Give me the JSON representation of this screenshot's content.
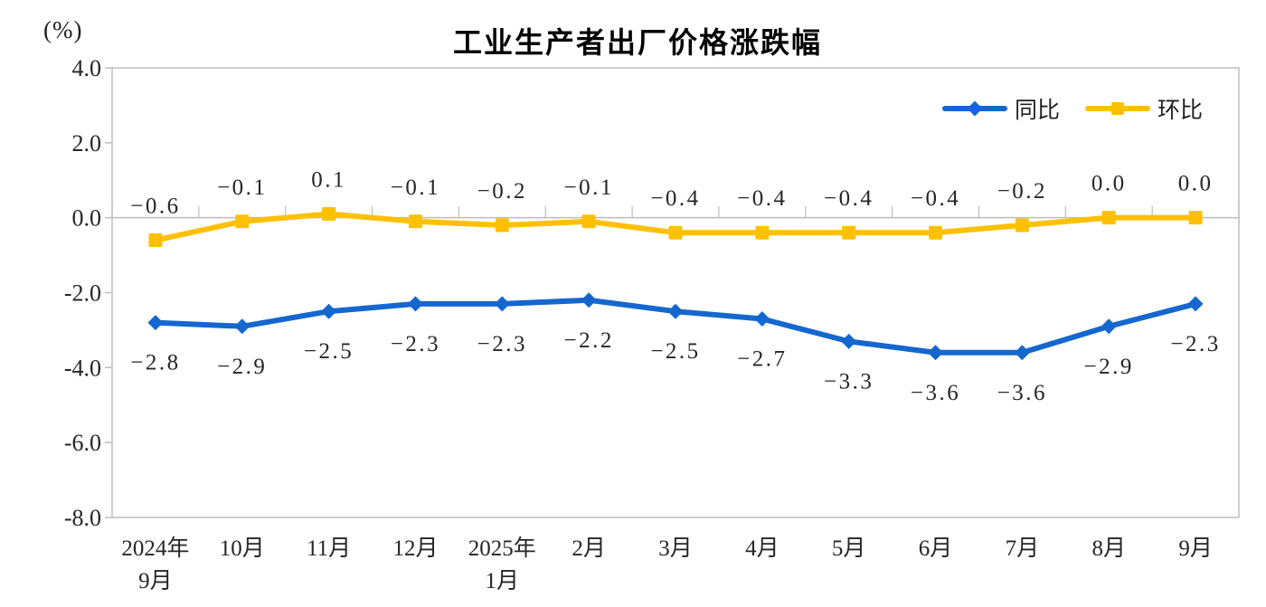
{
  "chart_data": {
    "type": "line",
    "title": "工业生产者出厂价格涨跌幅",
    "unit_label": "(%)",
    "categories": [
      "2024年9月",
      "10月",
      "11月",
      "12月",
      "2025年1月",
      "2月",
      "3月",
      "4月",
      "5月",
      "6月",
      "7月",
      "8月",
      "9月"
    ],
    "x_tick_lines": [
      [
        "2024年",
        "9月"
      ],
      [
        "10月"
      ],
      [
        "11月"
      ],
      [
        "12月"
      ],
      [
        "2025年",
        "1月"
      ],
      [
        "2月"
      ],
      [
        "3月"
      ],
      [
        "4月"
      ],
      [
        "5月"
      ],
      [
        "6月"
      ],
      [
        "7月"
      ],
      [
        "8月"
      ],
      [
        "9月"
      ]
    ],
    "series": [
      {
        "name": "同比",
        "color": "#1467CE",
        "marker": "diamond",
        "label_position": "below",
        "values": [
          -2.8,
          -2.9,
          -2.5,
          -2.3,
          -2.3,
          -2.2,
          -2.5,
          -2.7,
          -3.3,
          -3.6,
          -3.6,
          -2.9,
          -2.3
        ],
        "labels": [
          "-2.8",
          "-2.9",
          "-2.5",
          "-2.3",
          "-2.3",
          "-2.2",
          "-2.5",
          "-2.7",
          "-3.3",
          "-3.6",
          "-3.6",
          "-2.9",
          "-2.3"
        ]
      },
      {
        "name": "环比",
        "color": "#FFC000",
        "marker": "square",
        "label_position": "above",
        "values": [
          -0.6,
          -0.1,
          0.1,
          -0.1,
          -0.2,
          -0.1,
          -0.4,
          -0.4,
          -0.4,
          -0.4,
          -0.2,
          0.0,
          0.0
        ],
        "labels": [
          "-0.6",
          "-0.1",
          "0.1",
          "-0.1",
          "-0.2",
          "-0.1",
          "-0.4",
          "-0.4",
          "-0.4",
          "-0.4",
          "-0.2",
          "0.0",
          "0.0"
        ]
      }
    ],
    "ylim": [
      -8.0,
      4.0
    ],
    "yticks": [
      4.0,
      2.0,
      0.0,
      -2.0,
      -4.0,
      -6.0,
      -8.0
    ],
    "ytick_labels": [
      "4.0",
      "2.0",
      "0.0",
      "-2.0",
      "-4.0",
      "-6.0",
      "-8.0"
    ],
    "grid": false,
    "legend_position": "top-right",
    "axis_color": "#BDBDBD",
    "text_color": "#262626"
  }
}
